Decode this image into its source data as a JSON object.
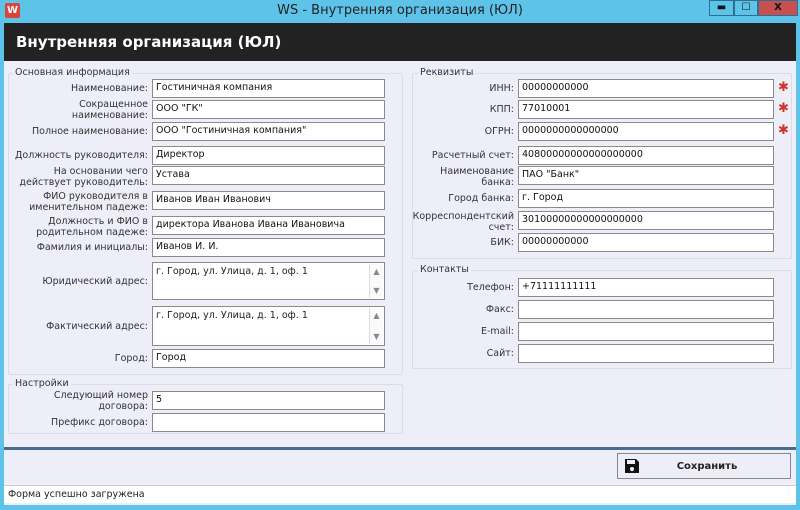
{
  "window": {
    "title": "WS - Внутренняя организация (ЮЛ)",
    "app_icon": "W",
    "minimize": "▬",
    "maximize": "☐",
    "close": "X",
    "close_color": "#c75050"
  },
  "header": {
    "title": "Внутренняя организация (ЮЛ)"
  },
  "main_info": {
    "title": "Основная информация",
    "fields": [
      {
        "label": "Наименование:",
        "value": "Гостиничная компания"
      },
      {
        "label": "Сокращенное наименование:",
        "value": "ООО \"ГК\""
      },
      {
        "label": "Полное наименование:",
        "value": "ООО \"Гостиничная компания\""
      },
      {
        "label": "Должность руководителя:",
        "value": "Директор"
      },
      {
        "label": "На основании чего действует руководитель:",
        "value": "Устава"
      },
      {
        "label": "ФИО руководителя в именительном падеже:",
        "value": "Иванов Иван Иванович"
      },
      {
        "label": "Должность и ФИО в родительном падеже:",
        "value": "директора Иванова Ивана Ивановича"
      },
      {
        "label": "Фамилия и инициалы:",
        "value": "Иванов И. И."
      },
      {
        "label": "Юридический адрес:",
        "value": "г. Город, ул. Улица, д. 1, оф. 1"
      },
      {
        "label": "Фактический адрес:",
        "value": "г. Город, ул. Улица, д. 1, оф. 1"
      },
      {
        "label": "Город:",
        "value": "Город"
      }
    ]
  },
  "settings": {
    "title": "Настройки",
    "fields": [
      {
        "label": "Следующий номер договора:",
        "value": "5"
      },
      {
        "label": "Префикс договора:",
        "value": ""
      }
    ]
  },
  "requisites": {
    "title": "Реквизиты",
    "required_mark": "✱",
    "fields": [
      {
        "label": "ИНН:",
        "value": "00000000000",
        "required": true
      },
      {
        "label": "КПП:",
        "value": "77010001",
        "required": true
      },
      {
        "label": "ОГРН:",
        "value": "0000000000000000",
        "required": true
      },
      {
        "label": "Расчетный счет:",
        "value": "40800000000000000000"
      },
      {
        "label": "Наименование банка:",
        "value": "ПАО \"Банк\""
      },
      {
        "label": "Город банка:",
        "value": "г. Город"
      },
      {
        "label": "Корреспондентский счет:",
        "value": "30100000000000000000"
      },
      {
        "label": "БИК:",
        "value": "00000000000"
      }
    ]
  },
  "contacts": {
    "title": "Контакты",
    "fields": [
      {
        "label": "Телефон:",
        "value": "+71111111111"
      },
      {
        "label": "Факс:",
        "value": ""
      },
      {
        "label": "E-mail:",
        "value": ""
      },
      {
        "label": "Сайт:",
        "value": ""
      }
    ]
  },
  "save_button": {
    "label": "Сохранить",
    "icon": "floppy-disk-icon"
  },
  "status": {
    "text": "Форма успешно загружена"
  }
}
